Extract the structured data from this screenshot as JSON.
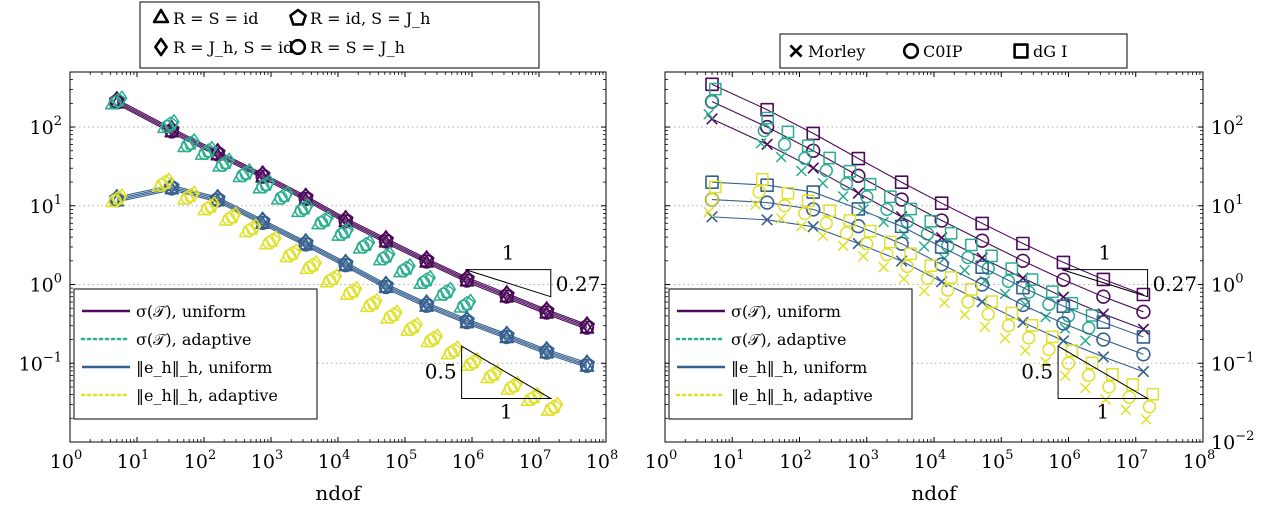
{
  "colors": {
    "uniform_sigma": "#4b0a5a",
    "adaptive_sigma": "#2aae8e",
    "uniform_err": "#36608f",
    "adaptive_err": "#dfe12a"
  },
  "chart_data": [
    {
      "type": "line",
      "xscale": "log",
      "yscale": "log",
      "xlabel": "ndof",
      "ylabel": "",
      "xlim": [
        1,
        100000000
      ],
      "ylim": [
        0.01,
        500
      ],
      "x_ticks": [
        "10^0",
        "10^1",
        "10^2",
        "10^3",
        "10^4",
        "10^5",
        "10^6",
        "10^7",
        "10^8"
      ],
      "y_ticks": [
        "10^2",
        "10^1",
        "10^0",
        "10^-1"
      ],
      "y_axis_side": "left",
      "grid": "horizontal dotted",
      "marker_legend": [
        {
          "symbol": "triangle",
          "label": "R = S = id"
        },
        {
          "symbol": "pentagon",
          "label": "R = id, S = J_h"
        },
        {
          "symbol": "diamond",
          "label": "R = J_h, S = id"
        },
        {
          "symbol": "circle",
          "label": "R = S = J_h"
        }
      ],
      "legend_placement": "bottom-left",
      "legend": [
        "σ(𝒯), uniform",
        "σ(𝒯), adaptive",
        "‖e_h‖_h, uniform",
        "‖e_h‖_h, adaptive"
      ],
      "slope_triangles": [
        {
          "label_top": "1",
          "label_side": "0.27"
        },
        {
          "label_top": "1",
          "label_side": "0.5"
        }
      ],
      "series": [
        {
          "name": "σ(𝒯), uniform",
          "style": "solid",
          "color": "uniform_sigma",
          "x": [
            5,
            33,
            160,
            750,
            3300,
            13000,
            52000,
            210000,
            840000,
            3300000,
            13000000,
            52000000
          ],
          "values": [
            210,
            90,
            46,
            24,
            12.5,
            6.5,
            3.6,
            2.0,
            1.15,
            0.72,
            0.45,
            0.29
          ]
        },
        {
          "name": "σ(𝒯), adaptive",
          "style": "dotted",
          "color": "adaptive_sigma",
          "x": [
            5,
            30,
            60,
            110,
            200,
            400,
            800,
            1500,
            3000,
            6000,
            12000,
            25000,
            50000,
            100000,
            200000,
            400000,
            800000
          ],
          "values": [
            210,
            105,
            60,
            48,
            34,
            25,
            18,
            13,
            9,
            6.3,
            4.5,
            3.1,
            2.2,
            1.55,
            1.1,
            0.78,
            0.55
          ]
        },
        {
          "name": "‖e_h‖_h, uniform",
          "style": "solid",
          "color": "uniform_err",
          "x": [
            5,
            33,
            160,
            750,
            3300,
            13000,
            52000,
            210000,
            840000,
            3300000,
            13000000,
            52000000
          ],
          "values": [
            12,
            17,
            12,
            6.2,
            3.3,
            1.8,
            0.95,
            0.55,
            0.34,
            0.22,
            0.14,
            0.095
          ]
        },
        {
          "name": "‖e_h‖_h, adaptive",
          "style": "dotted",
          "color": "adaptive_err",
          "x": [
            5,
            25,
            60,
            120,
            250,
            500,
            1000,
            2000,
            4000,
            8000,
            16000,
            32000,
            64000,
            128000,
            256000,
            512000,
            1000000,
            2000000,
            4000000,
            8000000,
            16000000
          ],
          "values": [
            12,
            19,
            13,
            9.5,
            7,
            5,
            3.5,
            2.4,
            1.7,
            1.15,
            0.8,
            0.56,
            0.4,
            0.28,
            0.2,
            0.14,
            0.1,
            0.07,
            0.05,
            0.036,
            0.027
          ]
        }
      ]
    },
    {
      "type": "line",
      "xscale": "log",
      "yscale": "log",
      "xlabel": "ndof",
      "ylabel": "",
      "xlim": [
        1,
        100000000
      ],
      "ylim": [
        0.01,
        500
      ],
      "x_ticks": [
        "10^0",
        "10^1",
        "10^2",
        "10^3",
        "10^4",
        "10^5",
        "10^6",
        "10^7",
        "10^8"
      ],
      "y_ticks": [
        "10^2",
        "10^1",
        "10^0",
        "10^-1",
        "10^-2"
      ],
      "y_axis_side": "right",
      "grid": "horizontal dotted",
      "marker_legend": [
        {
          "symbol": "cross",
          "label": "Morley"
        },
        {
          "symbol": "circle",
          "label": "C0IP"
        },
        {
          "symbol": "square",
          "label": "dG I"
        }
      ],
      "legend_placement": "bottom-left",
      "legend": [
        "σ(𝒯), uniform",
        "σ(𝒯), adaptive",
        "‖e_h‖_h, uniform",
        "‖e_h‖_h, adaptive"
      ],
      "slope_triangles": [
        {
          "label_top": "1",
          "label_side": "0.27"
        },
        {
          "label_top": "1",
          "label_side": "0.5"
        }
      ],
      "series": [
        {
          "name": "σ(𝒯), uniform",
          "style": "solid",
          "color": "uniform_sigma",
          "x": [
            5,
            33,
            160,
            750,
            3300,
            13000,
            52000,
            210000,
            840000,
            3300000,
            13000000
          ],
          "values": [
            210,
            100,
            50,
            24,
            12,
            6.5,
            3.6,
            2.0,
            1.15,
            0.7,
            0.45
          ]
        },
        {
          "name": "σ(𝒯), adaptive",
          "style": "dotted",
          "color": "adaptive_sigma",
          "x": [
            5,
            30,
            60,
            120,
            250,
            500,
            1000,
            2000,
            4000,
            8000,
            16000,
            32000,
            64000,
            128000,
            256000,
            512000,
            1000000,
            2000000
          ],
          "values": [
            210,
            90,
            60,
            40,
            28,
            19,
            13,
            9,
            6.3,
            4.4,
            3.1,
            2.2,
            1.6,
            1.1,
            0.8,
            0.56,
            0.4,
            0.28
          ]
        },
        {
          "name": "‖e_h‖_h, uniform",
          "style": "solid",
          "color": "uniform_err",
          "x": [
            5,
            33,
            160,
            750,
            3300,
            13000,
            52000,
            210000,
            840000,
            3300000,
            13000000
          ],
          "values": [
            12,
            11,
            9,
            5.5,
            3.3,
            1.8,
            1.0,
            0.55,
            0.32,
            0.2,
            0.13
          ]
        },
        {
          "name": "‖e_h‖_h, adaptive",
          "style": "dotted",
          "color": "adaptive_err",
          "x": [
            5,
            25,
            60,
            120,
            250,
            500,
            1000,
            2000,
            4000,
            8000,
            16000,
            32000,
            64000,
            128000,
            256000,
            512000,
            1000000,
            2000000,
            4000000,
            8000000,
            16000000
          ],
          "values": [
            12,
            15,
            10,
            8,
            6,
            4.5,
            3.3,
            2.4,
            1.7,
            1.2,
            0.85,
            0.6,
            0.42,
            0.3,
            0.21,
            0.15,
            0.1,
            0.07,
            0.05,
            0.037,
            0.028
          ]
        }
      ]
    }
  ]
}
